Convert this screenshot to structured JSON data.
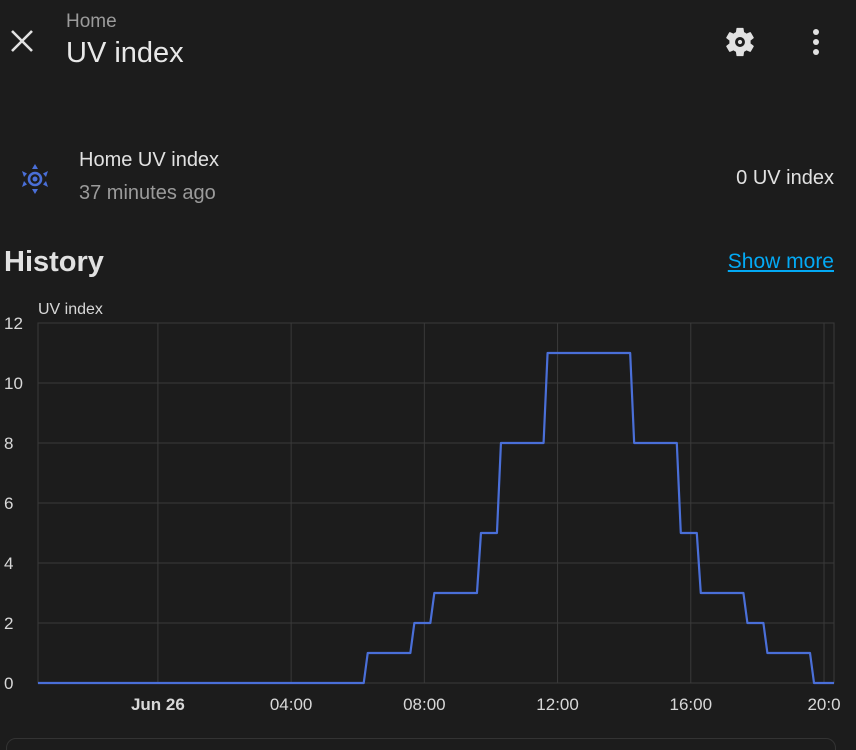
{
  "header": {
    "breadcrumb": "Home",
    "title": "UV index"
  },
  "entity": {
    "name": "Home UV index",
    "last_changed": "37 minutes ago",
    "state": "0 UV index",
    "icon": "sun-icon"
  },
  "history": {
    "heading": "History",
    "show_more_label": "Show more"
  },
  "colors": {
    "background": "#1c1c1c",
    "line": "#4a6fd8",
    "link": "#03a9f4"
  },
  "chart_data": {
    "type": "line",
    "title": "",
    "ylabel": "UV index",
    "xlabel": "",
    "ylim": [
      0,
      12
    ],
    "yticks": [
      "0",
      "2",
      "4",
      "6",
      "8",
      "10",
      "12"
    ],
    "xticks": [
      "Jun 26",
      "04:00",
      "08:00",
      "12:00",
      "16:00",
      "20:0"
    ],
    "xtick_hours": [
      0,
      4,
      8,
      12,
      16,
      20
    ],
    "xlim_hours": [
      -3.6,
      20.3
    ],
    "grid": true,
    "step": true,
    "series": [
      {
        "name": "",
        "x_hours": [
          -3.6,
          6.3,
          7.7,
          8.3,
          9.7,
          10.3,
          11.7,
          14.3,
          15.7,
          16.3,
          17.7,
          18.3,
          19.7,
          20.3
        ],
        "values": [
          0,
          1,
          2,
          3,
          5,
          8,
          11,
          8,
          5,
          3,
          2,
          1,
          0,
          0
        ]
      }
    ]
  }
}
